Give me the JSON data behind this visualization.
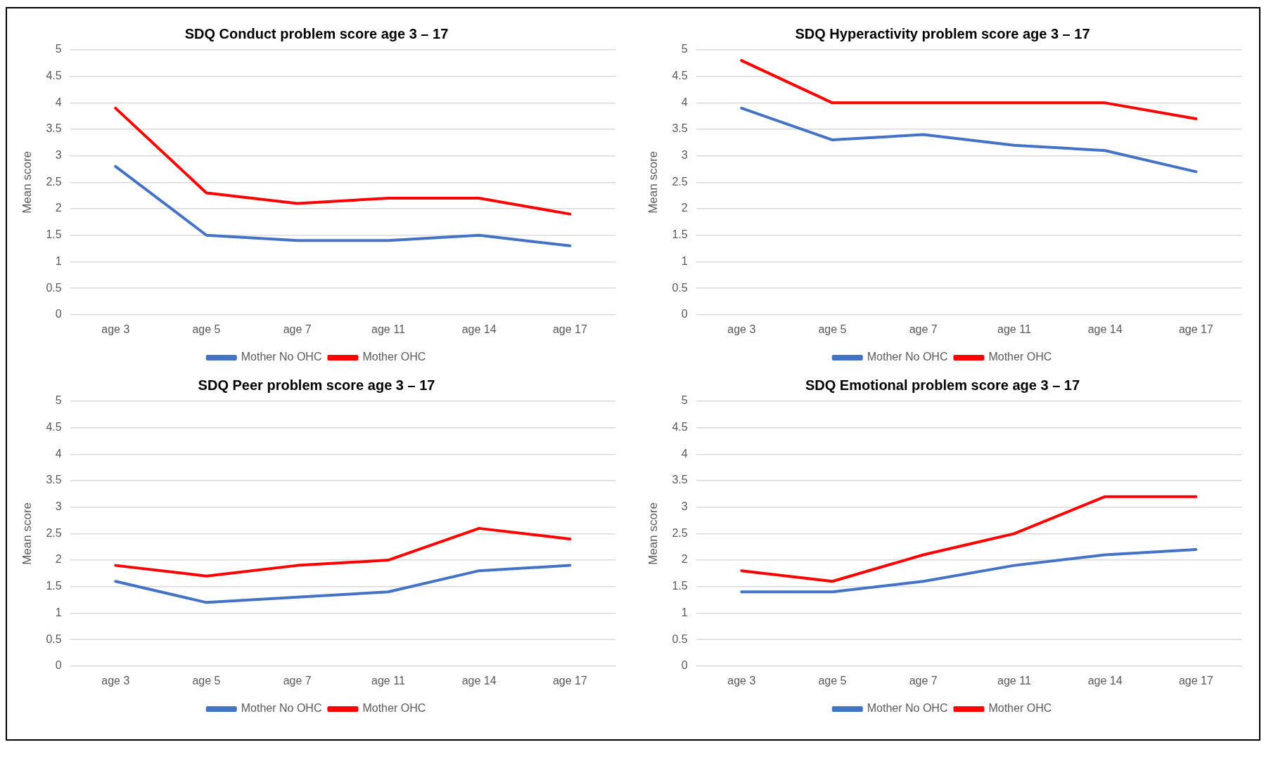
{
  "chart_data": [
    {
      "type": "line",
      "title": "SDQ Conduct problem score age 3 – 17",
      "ylabel": "Mean score",
      "categories": [
        "age 3",
        "age 5",
        "age 7",
        "age 11",
        "age 14",
        "age 17"
      ],
      "series": [
        {
          "name": "Mother No OHC",
          "color": "#4472c4",
          "values": [
            2.8,
            1.5,
            1.4,
            1.4,
            1.5,
            1.3
          ]
        },
        {
          "name": "Mother OHC",
          "color": "#ff0000",
          "values": [
            3.9,
            2.3,
            2.1,
            2.2,
            2.2,
            1.9
          ]
        }
      ],
      "ylim": [
        0,
        5
      ],
      "yticks": [
        0,
        0.5,
        1,
        1.5,
        2,
        2.5,
        3,
        3.5,
        4,
        4.5,
        5
      ],
      "grid": "y",
      "legend": "bottom",
      "marker": "none"
    },
    {
      "type": "line",
      "title": "SDQ Hyperactivity problem score age 3 – 17",
      "ylabel": "Mean score",
      "categories": [
        "age 3",
        "age 5",
        "age 7",
        "age 11",
        "age 14",
        "age 17"
      ],
      "series": [
        {
          "name": "Mother No OHC",
          "color": "#4472c4",
          "values": [
            3.9,
            3.3,
            3.4,
            3.2,
            3.1,
            2.7
          ]
        },
        {
          "name": "Mother OHC",
          "color": "#ff0000",
          "values": [
            4.8,
            4.0,
            4.0,
            4.0,
            4.0,
            3.7
          ]
        }
      ],
      "ylim": [
        0,
        5
      ],
      "yticks": [
        0,
        0.5,
        1,
        1.5,
        2,
        2.5,
        3,
        3.5,
        4,
        4.5,
        5
      ],
      "grid": "y",
      "legend": "bottom",
      "marker": "none"
    },
    {
      "type": "line",
      "title": "SDQ Peer problem score age 3 – 17",
      "ylabel": "Mean score",
      "categories": [
        "age 3",
        "age 5",
        "age 7",
        "age 11",
        "age 14",
        "age 17"
      ],
      "series": [
        {
          "name": "Mother No OHC",
          "color": "#4472c4",
          "values": [
            1.6,
            1.2,
            1.3,
            1.4,
            1.8,
            1.9
          ]
        },
        {
          "name": "Mother OHC",
          "color": "#ff0000",
          "values": [
            1.9,
            1.7,
            1.9,
            2.0,
            2.6,
            2.4
          ]
        }
      ],
      "ylim": [
        0,
        5
      ],
      "yticks": [
        0,
        0.5,
        1,
        1.5,
        2,
        2.5,
        3,
        3.5,
        4,
        4.5,
        5
      ],
      "grid": "y",
      "legend": "bottom",
      "marker": "none"
    },
    {
      "type": "line",
      "title": "SDQ Emotional problem score age 3 – 17",
      "ylabel": "Mean score",
      "categories": [
        "age 3",
        "age 5",
        "age 7",
        "age 11",
        "age 14",
        "age 17"
      ],
      "series": [
        {
          "name": "Mother No OHC",
          "color": "#4472c4",
          "values": [
            1.4,
            1.4,
            1.6,
            1.9,
            2.1,
            2.2
          ]
        },
        {
          "name": "Mother OHC",
          "color": "#ff0000",
          "values": [
            1.8,
            1.6,
            2.1,
            2.5,
            3.2,
            3.2
          ]
        }
      ],
      "ylim": [
        0,
        5
      ],
      "yticks": [
        0,
        0.5,
        1,
        1.5,
        2,
        2.5,
        3,
        3.5,
        4,
        4.5,
        5
      ],
      "grid": "y",
      "legend": "bottom",
      "marker": "none"
    }
  ]
}
